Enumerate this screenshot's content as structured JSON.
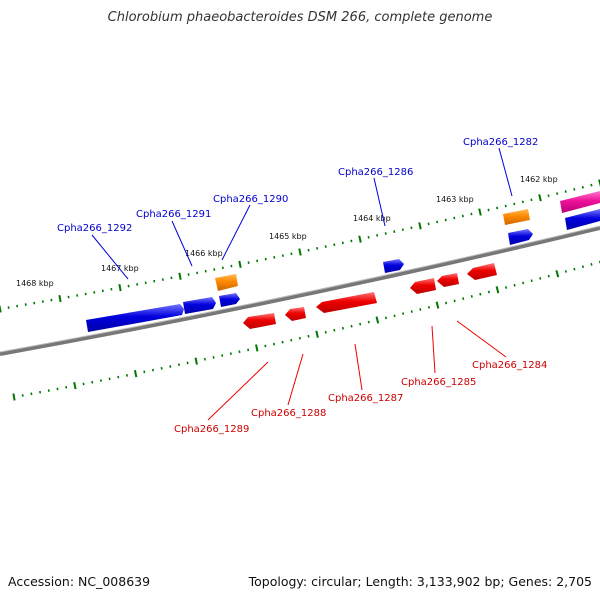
{
  "title": "Chlorobium phaeobacteroides DSM 266, complete genome",
  "footer": {
    "accession": "Accession: NC_008639",
    "summary": "Topology: circular; Length: 3,133,902 bp; Genes: 2,705"
  },
  "colors": {
    "forward_gene": "#0000dd",
    "reverse_gene": "#ee0000",
    "rna_gene": "#ff8800",
    "other_gene": "#ee1199",
    "tick": "#007700",
    "backbone": "#777777"
  },
  "kbp_marks": [
    "1462 kbp",
    "1463 kbp",
    "1464 kbp",
    "1465 kbp",
    "1466 kbp",
    "1467 kbp",
    "1468 kbp"
  ],
  "genes_top": [
    "Cpha266_1282",
    "Cpha266_1286",
    "Cpha266_1290",
    "Cpha266_1291",
    "Cpha266_1292"
  ],
  "genes_bottom": [
    "Cpha266_1284",
    "Cpha266_1285",
    "Cpha266_1287",
    "Cpha266_1288",
    "Cpha266_1289"
  ]
}
